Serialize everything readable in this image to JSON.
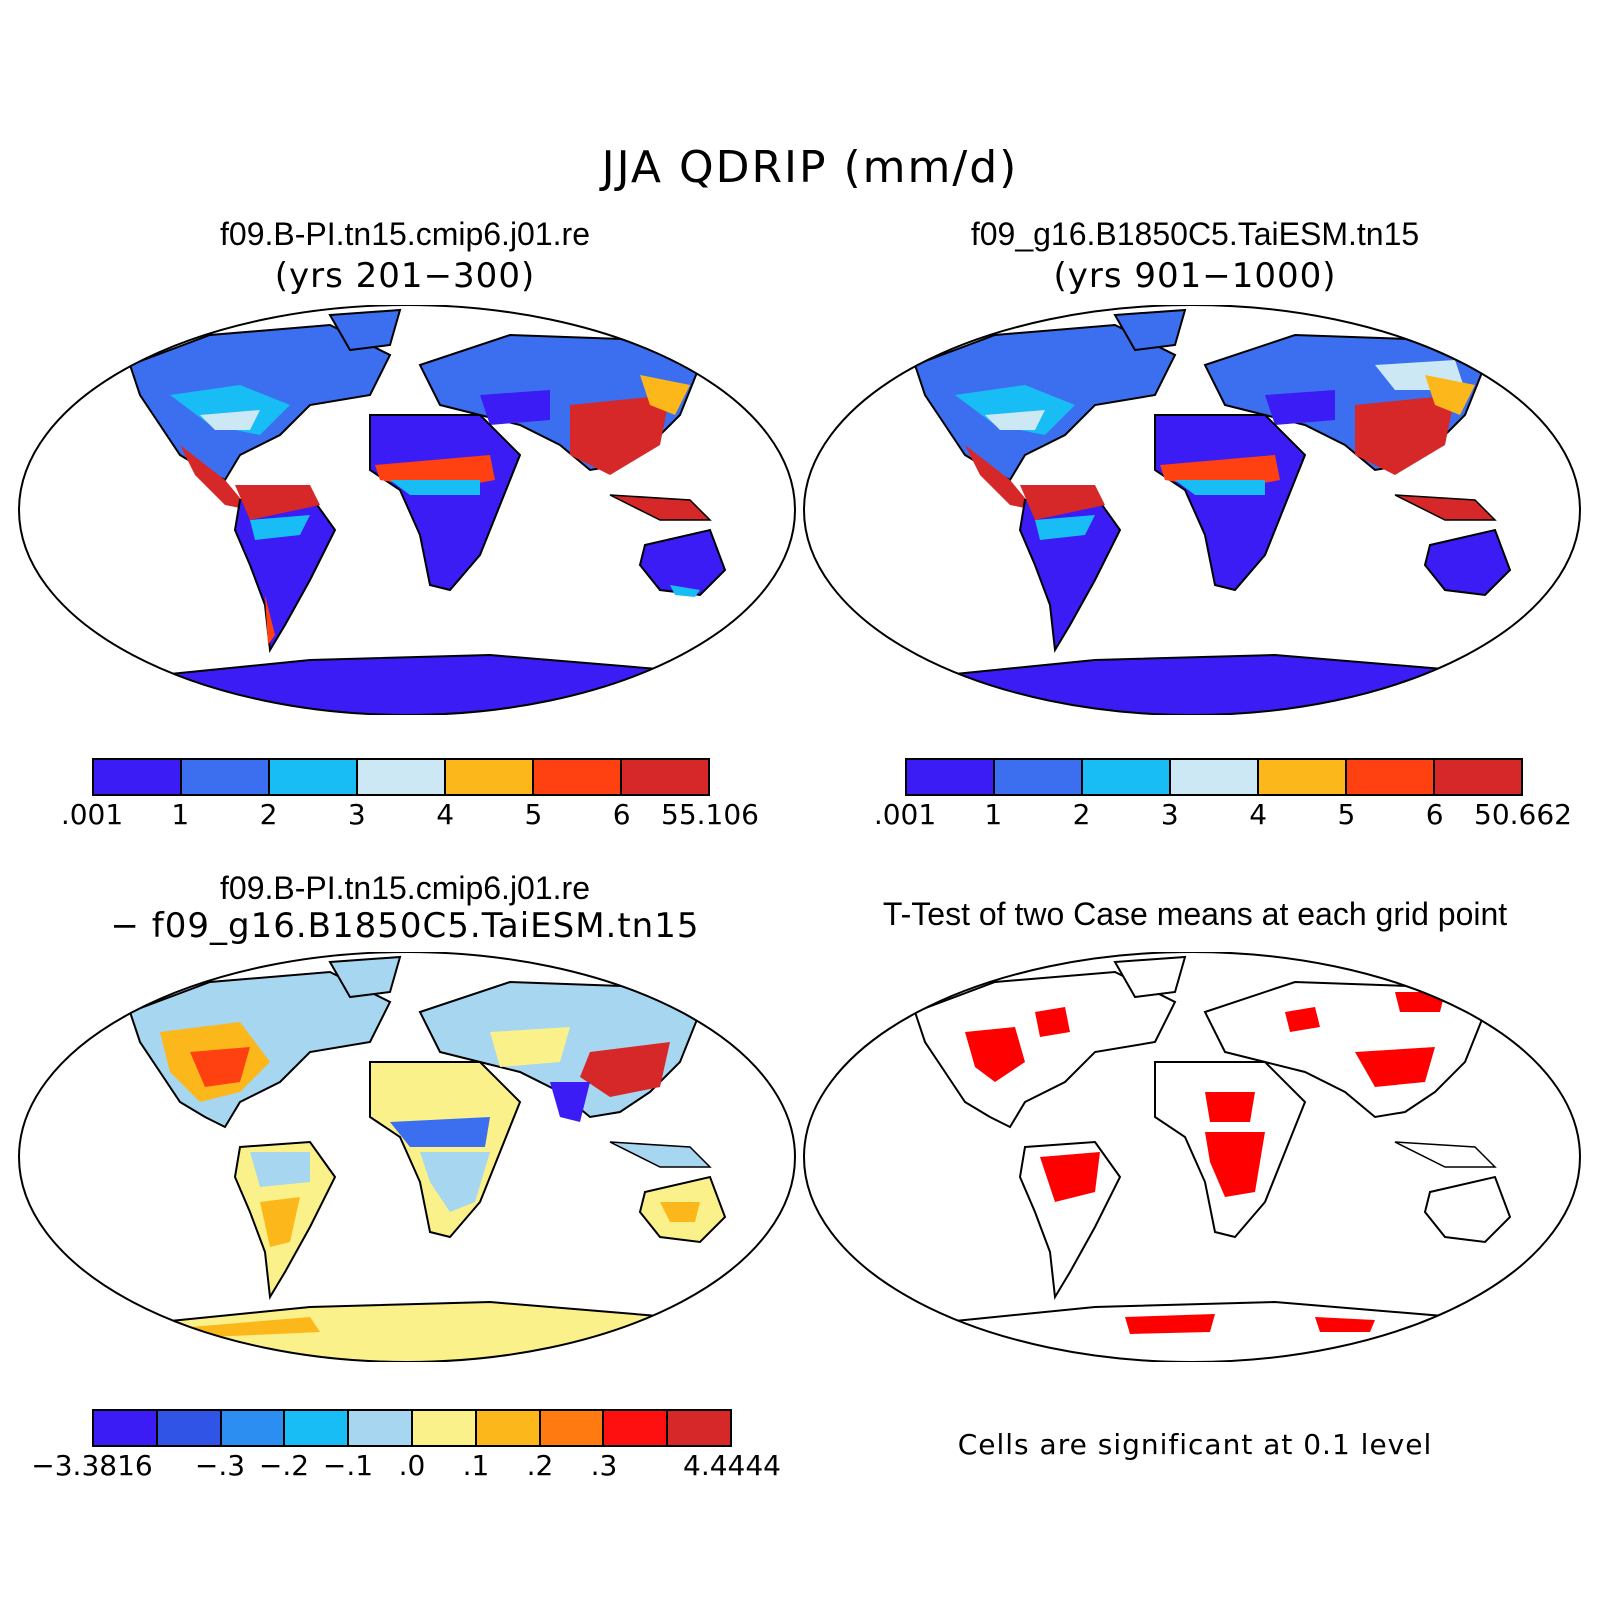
{
  "title": "JJA QDRIP (mm/d)",
  "panels": {
    "case1": {
      "title": "f09.B-PI.tn15.cmip6.j01.re",
      "subtitle": "(yrs 201−300)"
    },
    "case2": {
      "title": "f09_g16.B1850C5.TaiESM.tn15",
      "subtitle": "(yrs 901−1000)"
    },
    "diff": {
      "title": "f09.B-PI.tn15.cmip6.j01.re",
      "subtitle": "− f09_g16.B1850C5.TaiESM.tn15"
    },
    "ttest": {
      "title": "T-Test of two Case means at each grid point",
      "note": "Cells are significant at 0.1 level",
      "significant_color": "#ff0000"
    }
  },
  "colorbars": {
    "case1": {
      "colors": [
        "#3b1cf5",
        "#3b6ff0",
        "#19bdf5",
        "#cce8f5",
        "#fcb81a",
        "#ff4010",
        "#d62828"
      ],
      "labels": [
        ".001",
        "1",
        "2",
        "3",
        "4",
        "5",
        "6",
        "55.106"
      ]
    },
    "case2": {
      "colors": [
        "#3b1cf5",
        "#3b6ff0",
        "#19bdf5",
        "#cce8f5",
        "#fcb81a",
        "#ff4010",
        "#d62828"
      ],
      "labels": [
        ".001",
        "1",
        "2",
        "3",
        "4",
        "5",
        "6",
        "50.662"
      ]
    },
    "diff": {
      "colors": [
        "#3b1cf5",
        "#2f54e6",
        "#2b8ef0",
        "#19bdf5",
        "#a6d6f0",
        "#fbf18a",
        "#fcb81a",
        "#ff7a10",
        "#ff1010",
        "#d62828"
      ],
      "labels": [
        "−3.3816",
        "",
        "−.3",
        "−.2",
        "−.1",
        ".0",
        ".1",
        ".2",
        ".3",
        "",
        "4.4444"
      ]
    }
  },
  "map_colors": {
    "ocean": "#ffffff",
    "coast": "#000000",
    "dry": "#3b1cf5",
    "low": "#3b6ff0",
    "mid": "#19bdf5",
    "light": "#cce8f5",
    "orange": "#fcb81a",
    "red": "#d62828",
    "diff_pos": "#fbf18a",
    "diff_neg": "#a6d6f0"
  }
}
